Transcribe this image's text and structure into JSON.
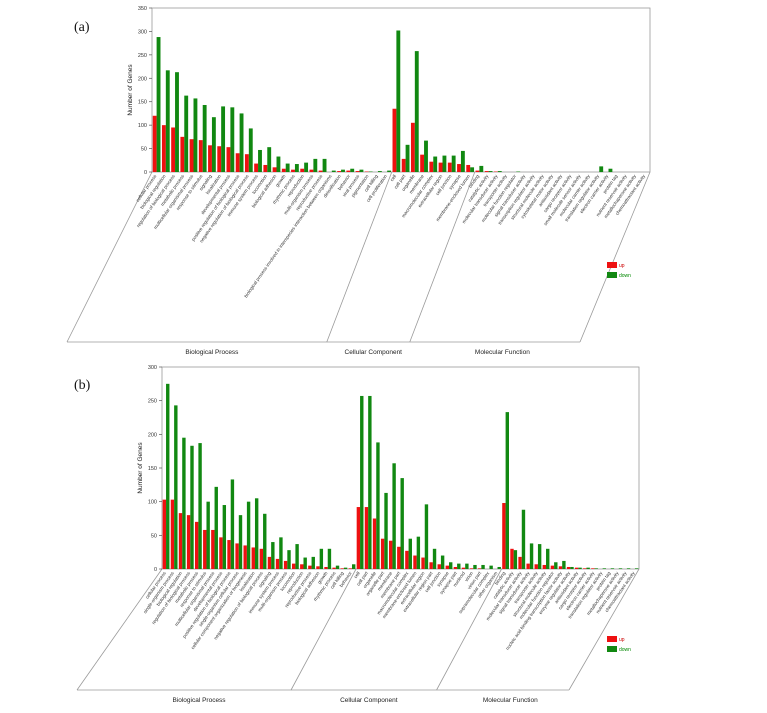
{
  "legend": {
    "up": {
      "label": "up",
      "color": "#ee1111"
    },
    "down": {
      "label": "down",
      "color": "#118811"
    }
  },
  "chart_data": [
    {
      "panel": "(a)",
      "type": "bar",
      "ylabel": "Number of Genes",
      "ylim": [
        0,
        350
      ],
      "yticks": [
        0,
        50,
        100,
        150,
        200,
        250,
        300,
        350
      ],
      "legend_position": "right",
      "groups": [
        {
          "label": "Biological Process",
          "start": 0,
          "end": 25
        },
        {
          "label": "Cellular Component",
          "start": 26,
          "end": 34
        },
        {
          "label": "Molecular Function",
          "start": 35,
          "end": 53
        }
      ],
      "categories": [
        "cellular process",
        "biological regulation",
        "regulation of biological process",
        "metabolic process",
        "multicellular organismal process",
        "response to stimulus",
        "signaling",
        "localization",
        "developmental process",
        "positive regulation of biological process",
        "negative regulation of biological process",
        "immune system process",
        "locomotion",
        "biological adhesion",
        "growth",
        "rhythmic process",
        "reproduction",
        "multi-organism process",
        "reproductive process",
        "biological process involved in interspecies interaction between organisms",
        "detoxification",
        "behavior",
        "viral process",
        "pigmentation",
        "cell killing",
        "cell proliferation",
        "cell",
        "cell part",
        "organelle",
        "membrane",
        "macromolecular complex",
        "extracellular region",
        "cell junction",
        "synapse",
        "membrane-enclosed lumen",
        "binding",
        "catalytic activity",
        "molecular transducer activity",
        "transporter activity",
        "molecular function regulator",
        "signal transducer activity",
        "transcription regulator activity",
        "structural molecule activity",
        "cytoskeletal motor activity",
        "antioxidant activity",
        "cargo receptor activity",
        "small molecule sensor activity",
        "molecular carrier activity",
        "translation regulator activity",
        "electron carrier activity",
        "protein tag",
        "nutrient reservoir activity",
        "metallochaperone activity",
        "chemoattractant activity"
      ],
      "series": [
        {
          "name": "up",
          "values": [
            120,
            100,
            95,
            75,
            70,
            68,
            57,
            55,
            53,
            40,
            38,
            18,
            15,
            10,
            7,
            5,
            7,
            5,
            3,
            0,
            2,
            3,
            2,
            1,
            0,
            0,
            135,
            28,
            105,
            37,
            22,
            20,
            20,
            17,
            15,
            3,
            2,
            1,
            0,
            0,
            0,
            0,
            0,
            0,
            0,
            0,
            0,
            0,
            0,
            0,
            0,
            0,
            0,
            0
          ]
        },
        {
          "name": "down",
          "values": [
            288,
            217,
            213,
            163,
            157,
            143,
            117,
            140,
            138,
            125,
            93,
            47,
            53,
            33,
            18,
            17,
            20,
            28,
            28,
            3,
            5,
            7,
            5,
            1,
            2,
            3,
            302,
            58,
            258,
            67,
            33,
            35,
            35,
            45,
            10,
            13,
            2,
            2,
            0,
            1,
            0,
            0,
            0,
            0,
            0,
            0,
            0,
            0,
            12,
            7,
            0,
            0,
            0,
            0
          ]
        }
      ]
    },
    {
      "panel": "(b)",
      "type": "bar",
      "ylabel": "Number of Genes",
      "ylim": [
        0,
        300
      ],
      "yticks": [
        0,
        50,
        100,
        150,
        200,
        250,
        300
      ],
      "legend_position": "right",
      "groups": [
        {
          "label": "Biological Process",
          "start": 0,
          "end": 23
        },
        {
          "label": "Cellular Component",
          "start": 24,
          "end": 41
        },
        {
          "label": "Molecular Function",
          "start": 42,
          "end": 58
        }
      ],
      "categories": [
        "cellular process",
        "single-organism process",
        "biological regulation",
        "regulation of biological process",
        "metabolic process",
        "response to stimulus",
        "multicellular organismal process",
        "developmental process",
        "positive regulation of biological process",
        "single-organism cellular process",
        "cellular component organization or biogenesis",
        "localization",
        "negative regulation of biological process",
        "signaling",
        "immune system process",
        "multi-organism process",
        "locomotion",
        "reproduction",
        "reproductive process",
        "biological adhesion",
        "growth",
        "rhythmic process",
        "cell killing",
        "behavior",
        "cell",
        "cell part",
        "organelle",
        "organelle part",
        "membrane",
        "membrane part",
        "macromolecular complex",
        "membrane-enclosed lumen",
        "extracellular region",
        "extracellular region part",
        "cell junction",
        "synapse",
        "synapse part",
        "nucleoid",
        "virion",
        "virion part",
        "supramolecular complex",
        "other organism",
        "binding",
        "catalytic activity",
        "molecular transducer activity",
        "signal transducer activity",
        "transporter activity",
        "structural molecule activity",
        "molecular function regulator",
        "nucleic acid binding transcription factor activity",
        "enzyme regulator activity",
        "antioxidant activity",
        "cargo receptor activity",
        "electron carrier activity",
        "translation regulator activity",
        "protein tag",
        "metallochaperone activity",
        "nutrient reservoir activity",
        "chemoattractant activity"
      ],
      "series": [
        {
          "name": "up",
          "values": [
            103,
            103,
            83,
            80,
            70,
            58,
            58,
            47,
            43,
            38,
            35,
            32,
            30,
            18,
            15,
            12,
            8,
            7,
            5,
            4,
            3,
            2,
            1,
            1,
            92,
            92,
            75,
            45,
            42,
            33,
            27,
            20,
            17,
            10,
            7,
            5,
            3,
            2,
            1,
            1,
            0,
            0,
            98,
            30,
            18,
            8,
            7,
            6,
            5,
            4,
            3,
            2,
            1,
            1,
            0,
            0,
            0,
            0,
            0
          ]
        },
        {
          "name": "down",
          "values": [
            275,
            243,
            195,
            183,
            187,
            100,
            122,
            95,
            133,
            80,
            100,
            105,
            82,
            40,
            47,
            28,
            37,
            17,
            18,
            30,
            30,
            5,
            2,
            7,
            257,
            257,
            188,
            113,
            157,
            135,
            45,
            48,
            96,
            30,
            20,
            10,
            8,
            8,
            6,
            6,
            5,
            3,
            233,
            28,
            88,
            38,
            37,
            30,
            10,
            12,
            3,
            2,
            2,
            1,
            1,
            1,
            1,
            1,
            1
          ]
        }
      ]
    }
  ]
}
